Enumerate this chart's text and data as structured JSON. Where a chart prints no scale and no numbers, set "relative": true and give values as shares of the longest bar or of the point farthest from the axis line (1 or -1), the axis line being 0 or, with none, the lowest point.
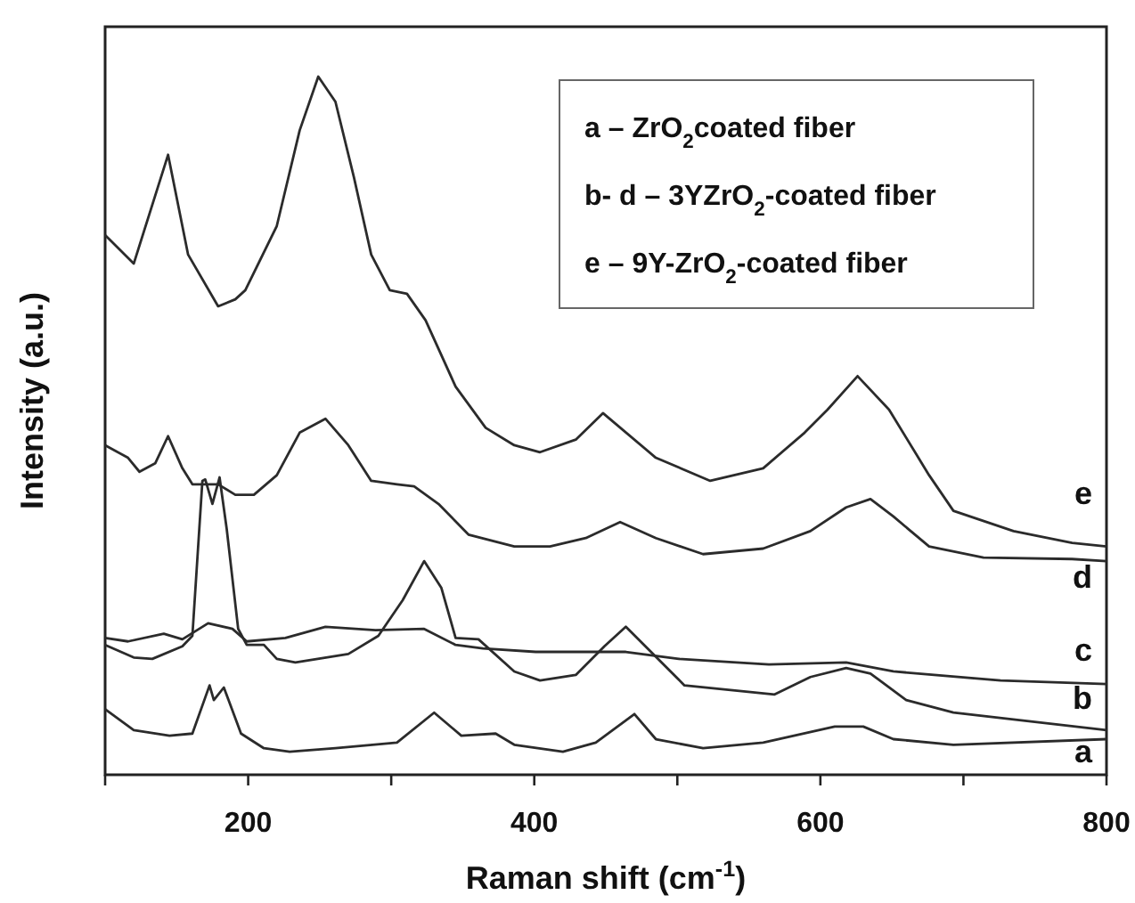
{
  "chart_data": {
    "type": "line",
    "relative": true,
    "xlabel": "Raman shift (cm$^{-1}$)",
    "ylabel": "Intensity (a.u.)",
    "xlim": [
      100,
      800
    ],
    "xticks": [
      {
        "value": 100,
        "label": null
      },
      200,
      {
        "value": 300,
        "label": null
      },
      400,
      {
        "value": 500,
        "label": null
      },
      600,
      {
        "value": 700,
        "label": null
      },
      800
    ],
    "grid": false,
    "marker": "none",
    "line_style": "solid",
    "annotations": [
      "a – ZrO$_{2}$coated fiber",
      "b- d – 3YZrO$_{2}$-coated fiber",
      "e – 9Y-ZrO$_{2}$-coated fiber"
    ],
    "series": [
      {
        "name": "a",
        "color": "#2b2b2b",
        "x": [
          100,
          120,
          145,
          161,
          173,
          176,
          183,
          195,
          211,
          229,
          261,
          304,
          330,
          349,
          373,
          386,
          420,
          443,
          470,
          485,
          518,
          560,
          610,
          630,
          651,
          693,
          800
        ],
        "values": [
          0.094,
          0.064,
          0.056,
          0.059,
          0.128,
          0.107,
          0.125,
          0.059,
          0.038,
          0.033,
          0.038,
          0.046,
          0.089,
          0.056,
          0.059,
          0.043,
          0.033,
          0.046,
          0.087,
          0.051,
          0.038,
          0.046,
          0.069,
          0.069,
          0.051,
          0.043,
          0.051
        ]
      },
      {
        "name": "b",
        "color": "#2b2b2b",
        "x": [
          100,
          120,
          133,
          154,
          161,
          168,
          170,
          175,
          180,
          185,
          193,
          199,
          211,
          220,
          233,
          270,
          291,
          308,
          323,
          335,
          345,
          361,
          386,
          404,
          429,
          449,
          464,
          505,
          568,
          593,
          618,
          635,
          660,
          693,
          800
        ],
        "values": [
          0.186,
          0.168,
          0.166,
          0.184,
          0.199,
          0.421,
          0.423,
          0.388,
          0.426,
          0.352,
          0.209,
          0.186,
          0.186,
          0.166,
          0.161,
          0.173,
          0.199,
          0.25,
          0.306,
          0.268,
          0.196,
          0.194,
          0.148,
          0.135,
          0.143,
          0.184,
          0.212,
          0.128,
          0.115,
          0.14,
          0.153,
          0.145,
          0.107,
          0.089,
          0.064
        ]
      },
      {
        "name": "c",
        "color": "#2b2b2b",
        "x": [
          100,
          116,
          141,
          154,
          172,
          189,
          199,
          226,
          254,
          289,
          323,
          345,
          364,
          401,
          464,
          501,
          564,
          618,
          651,
          726,
          800
        ],
        "values": [
          0.196,
          0.191,
          0.202,
          0.194,
          0.217,
          0.209,
          0.191,
          0.196,
          0.212,
          0.207,
          0.209,
          0.186,
          0.181,
          0.176,
          0.176,
          0.166,
          0.158,
          0.161,
          0.148,
          0.135,
          0.13
        ]
      },
      {
        "name": "d",
        "color": "#2b2b2b",
        "x": [
          100,
          116,
          124,
          135,
          144,
          154,
          161,
          179,
          191,
          204,
          220,
          236,
          254,
          270,
          286,
          304,
          316,
          333,
          354,
          386,
          411,
          436,
          460,
          485,
          518,
          560,
          593,
          618,
          635,
          651,
          676,
          714,
          776,
          800
        ],
        "values": [
          0.472,
          0.454,
          0.434,
          0.446,
          0.485,
          0.439,
          0.416,
          0.416,
          0.401,
          0.401,
          0.429,
          0.49,
          0.51,
          0.472,
          0.421,
          0.416,
          0.413,
          0.388,
          0.344,
          0.327,
          0.327,
          0.339,
          0.362,
          0.339,
          0.316,
          0.324,
          0.349,
          0.383,
          0.395,
          0.37,
          0.327,
          0.311,
          0.309,
          0.306
        ]
      },
      {
        "name": "e",
        "color": "#2b2b2b",
        "x": [
          100,
          120,
          144,
          158,
          179,
          191,
          198,
          220,
          236,
          249,
          261,
          274,
          286,
          299,
          311,
          324,
          345,
          366,
          386,
          404,
          429,
          448,
          485,
          523,
          560,
          589,
          605,
          626,
          648,
          676,
          693,
          735,
          776,
          800
        ],
        "values": [
          0.773,
          0.732,
          0.888,
          0.745,
          0.671,
          0.681,
          0.694,
          0.786,
          0.923,
          1,
          0.964,
          0.855,
          0.745,
          0.694,
          0.689,
          0.651,
          0.556,
          0.497,
          0.472,
          0.462,
          0.48,
          0.518,
          0.454,
          0.421,
          0.439,
          0.49,
          0.523,
          0.571,
          0.523,
          0.429,
          0.378,
          0.349,
          0.332,
          0.327
        ]
      }
    ]
  }
}
